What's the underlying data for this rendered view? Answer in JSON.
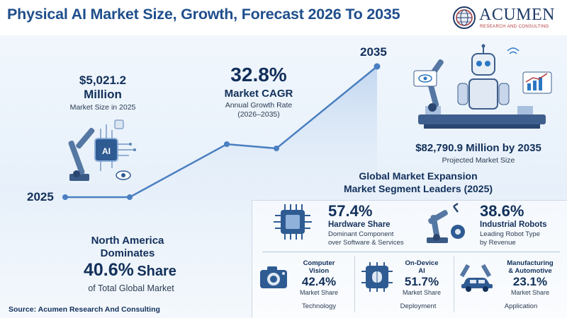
{
  "header": {
    "title": "Physical AI Market Size, Growth, Forecast 2026 To 2035",
    "logo_name": "Acumen",
    "logo_sub": "RESEARCH AND CONSULTING"
  },
  "market_2025": {
    "value": "$5,021.2",
    "unit": "Million",
    "caption": "Market Size in 2025"
  },
  "cagr": {
    "value": "32.8%",
    "title": "Market CAGR",
    "caption": "Annual Growth Rate",
    "period": "(2026–2035)"
  },
  "timeline": {
    "start_year": "2025",
    "end_year": "2035"
  },
  "projection": {
    "value": "$82,790.9 Million by 2035",
    "caption": "Projected Market Size"
  },
  "expansion": {
    "title": "Global Market Expansion",
    "subtitle": "Market Segment Leaders (2025)"
  },
  "segments": [
    {
      "value": "57.4%",
      "title": "Hardware Share",
      "desc1": "Dominant Component",
      "desc2": "over Software & Services",
      "icon": "chip-icon"
    },
    {
      "value": "38.6%",
      "title": "Industrial Robots",
      "desc1": "Leading Robot Type",
      "desc2": "by Revenue",
      "icon": "robot-arm-icon"
    }
  ],
  "cards": [
    {
      "title1": "Computer",
      "title2": "Vision",
      "value": "42.4%",
      "share": "Market Share",
      "category": "Technology",
      "icon": "camera-icon"
    },
    {
      "title1": "On-Device",
      "title2": "AI",
      "value": "51.7%",
      "share": "Market Share",
      "category": "Deployment",
      "icon": "brain-chip-icon"
    },
    {
      "title1": "Manufacturing",
      "title2": "& Automotive",
      "value": "23.1%",
      "share": "Market Share",
      "category": "Application",
      "icon": "car-assembly-icon"
    }
  ],
  "north_america": {
    "title1": "North America",
    "title2": "Dominates",
    "value": "40.6%",
    "share_word": "Share",
    "caption": "of Total Global Market"
  },
  "source": "Source: Acumen Research And Consulting",
  "colors": {
    "navy": "#12305a",
    "title_blue": "#1f4e8c",
    "line_blue": "#4a7fc1",
    "accent_red": "#b23b3b"
  }
}
